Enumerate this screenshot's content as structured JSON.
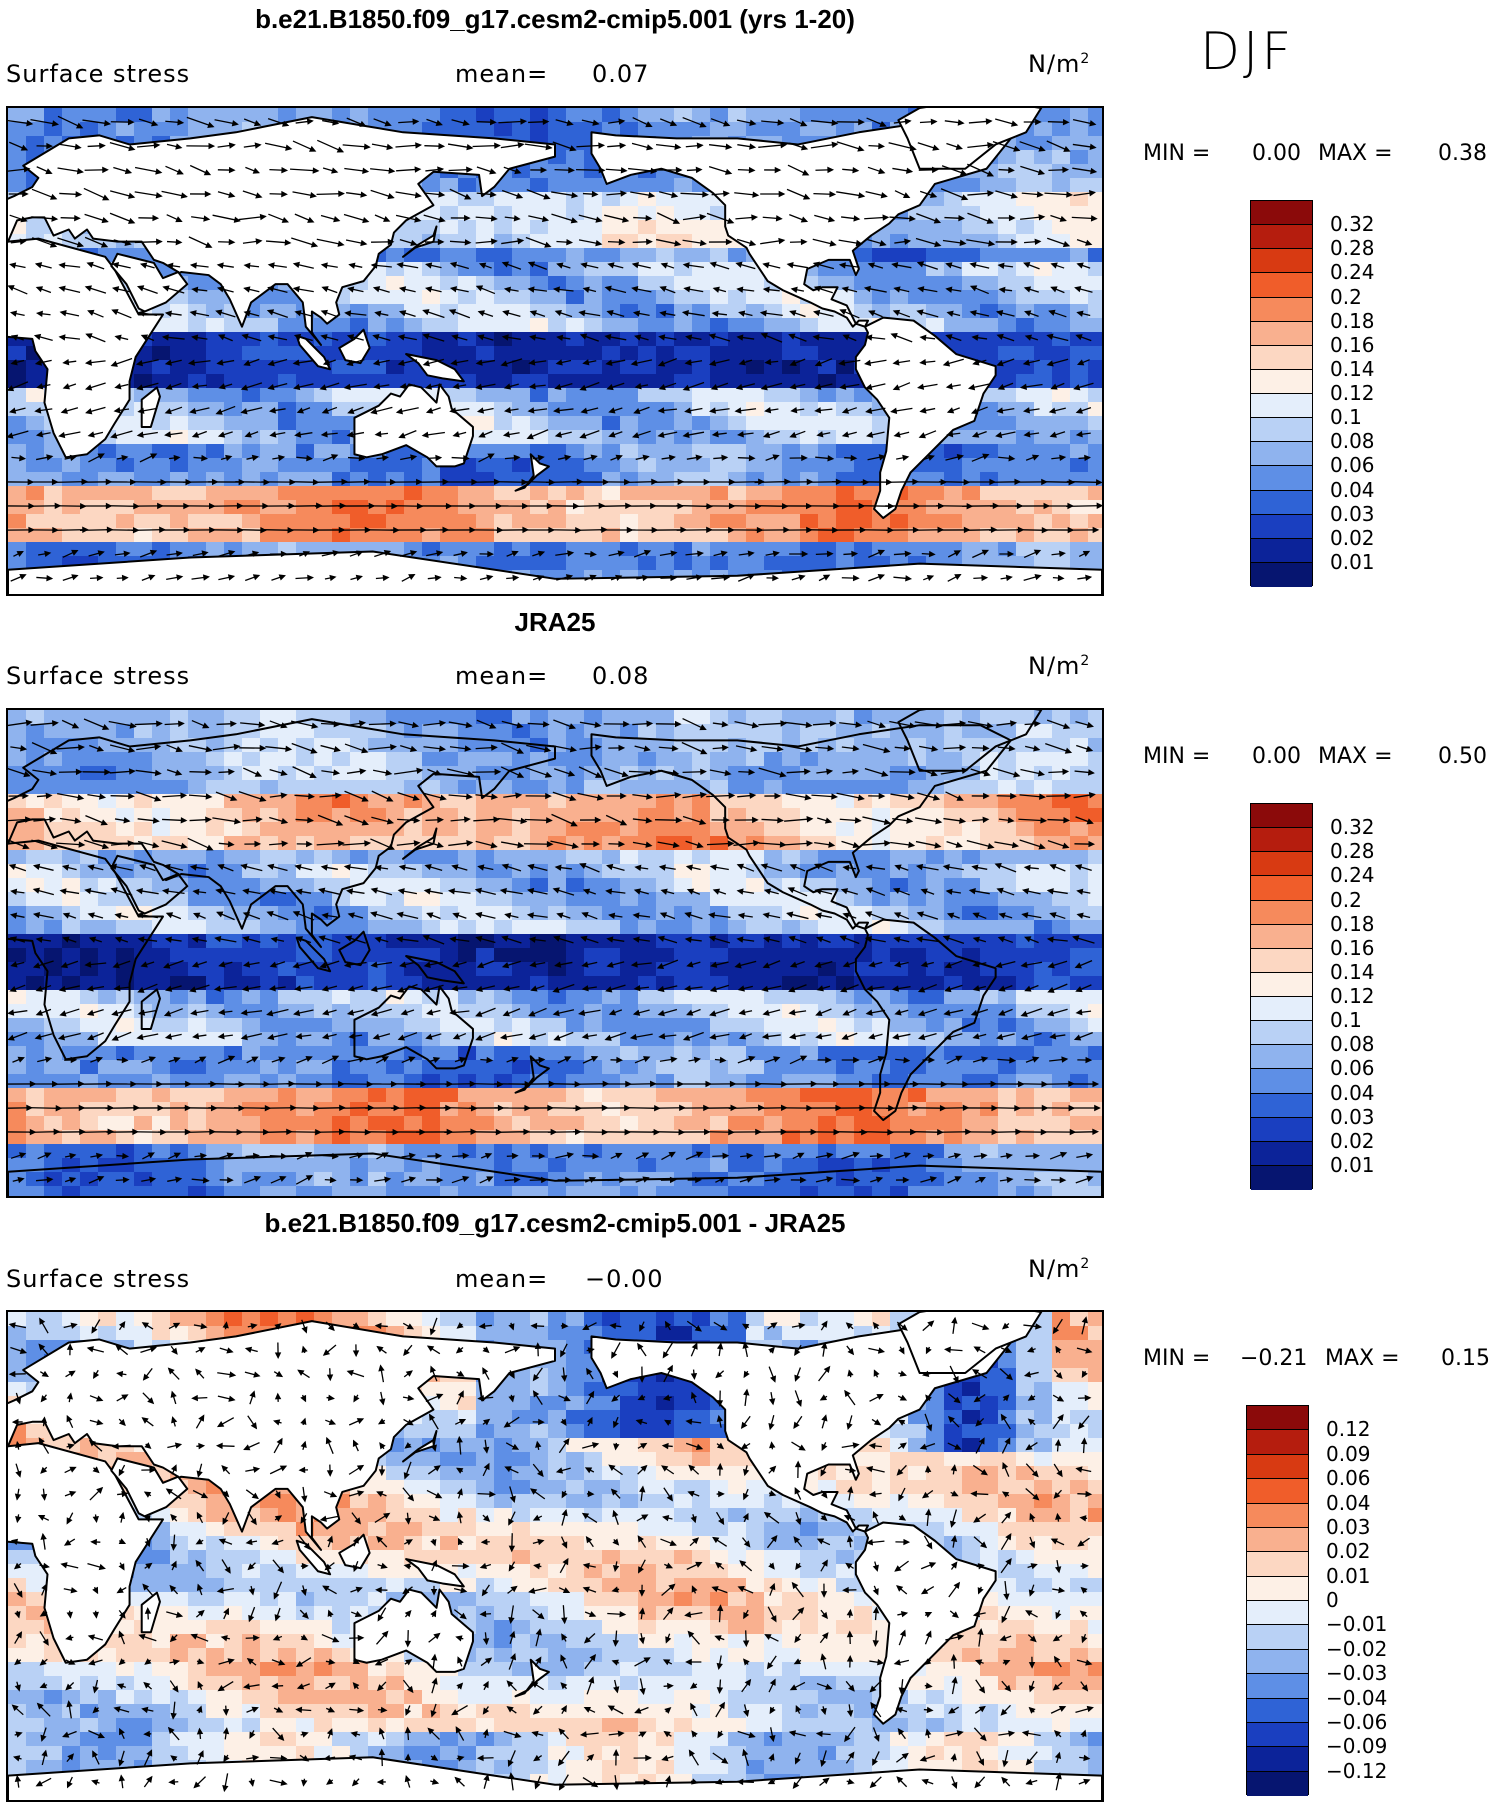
{
  "season": "DJF",
  "panels": [
    {
      "title": "b.e21.B1850.f09_g17.cesm2-cmip5.001 (yrs 1-20)",
      "variable": "Surface stress",
      "mean_label": "mean=",
      "mean_value": "0.07",
      "units": "N/m",
      "units_sup": "2",
      "min_label": "MIN =",
      "min_value": "0.00",
      "max_label": "MAX =",
      "max_value": "0.38",
      "colorbar_labels": [
        "0.32",
        "0.28",
        "0.24",
        "0.2",
        "0.18",
        "0.16",
        "0.14",
        "0.12",
        "0.1",
        "0.08",
        "0.06",
        "0.04",
        "0.03",
        "0.02",
        "0.01"
      ],
      "colorbar_colors": [
        "#8b0a0a",
        "#b51d0e",
        "#d83a12",
        "#f05d2a",
        "#f68a5c",
        "#f9b08f",
        "#fcd7c2",
        "#fdf0e6",
        "#e4eefb",
        "#b9d1f5",
        "#8fb3ee",
        "#5e8fe6",
        "#2f63d6",
        "#1a3fc0",
        "#0c2399",
        "#061570"
      ],
      "map_style": "model"
    },
    {
      "title": "JRA25",
      "variable": "Surface stress",
      "mean_label": "mean=",
      "mean_value": "0.08",
      "units": "N/m",
      "units_sup": "2",
      "min_label": "MIN =",
      "min_value": "0.00",
      "max_label": "MAX =",
      "max_value": "0.50",
      "colorbar_labels": [
        "0.32",
        "0.28",
        "0.24",
        "0.2",
        "0.18",
        "0.16",
        "0.14",
        "0.12",
        "0.1",
        "0.08",
        "0.06",
        "0.04",
        "0.03",
        "0.02",
        "0.01"
      ],
      "colorbar_colors": [
        "#8b0a0a",
        "#b51d0e",
        "#d83a12",
        "#f05d2a",
        "#f68a5c",
        "#f9b08f",
        "#fcd7c2",
        "#fdf0e6",
        "#e4eefb",
        "#b9d1f5",
        "#8fb3ee",
        "#5e8fe6",
        "#2f63d6",
        "#1a3fc0",
        "#0c2399",
        "#061570"
      ],
      "map_style": "obs"
    },
    {
      "title": "b.e21.B1850.f09_g17.cesm2-cmip5.001 - JRA25",
      "variable": "Surface stress",
      "mean_label": "mean=",
      "mean_value": "−0.00",
      "units": "N/m",
      "units_sup": "2",
      "min_label": "MIN =",
      "min_value": "−0.21",
      "max_label": "MAX =",
      "max_value": "0.15",
      "colorbar_labels": [
        "0.12",
        "0.09",
        "0.06",
        "0.04",
        "0.03",
        "0.02",
        "0.01",
        "0",
        "−0.01",
        "−0.02",
        "−0.03",
        "−0.04",
        "−0.06",
        "−0.09",
        "−0.12"
      ],
      "colorbar_colors": [
        "#8b0a0a",
        "#b51d0e",
        "#d83a12",
        "#f05d2a",
        "#f68a5c",
        "#f9b08f",
        "#fcd7c2",
        "#fdf0e6",
        "#e4eefb",
        "#b9d1f5",
        "#8fb3ee",
        "#5e8fe6",
        "#2f63d6",
        "#1a3fc0",
        "#0c2399",
        "#061570"
      ],
      "map_style": "diff"
    }
  ]
}
